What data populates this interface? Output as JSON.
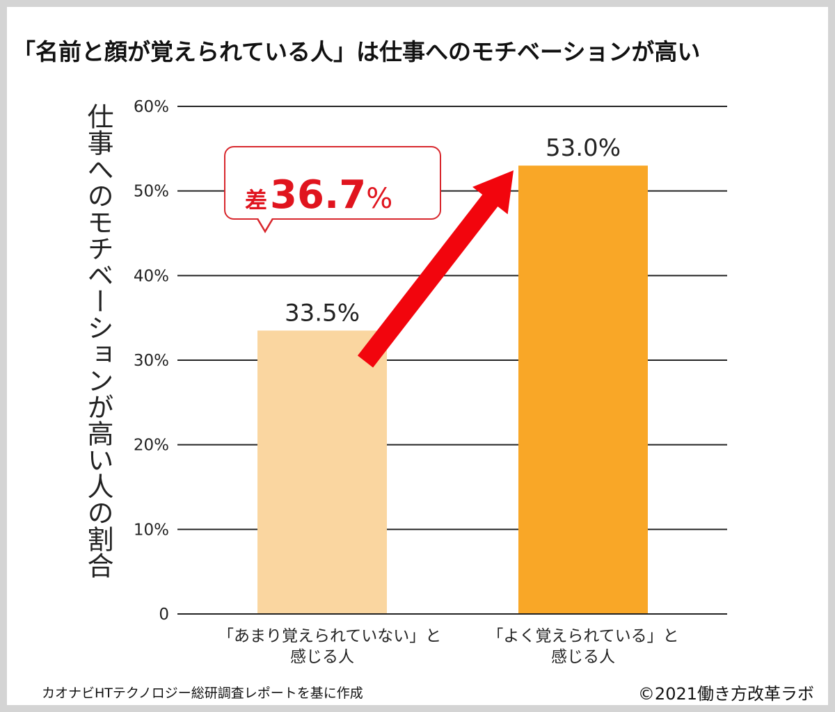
{
  "chart_data": {
    "type": "bar",
    "title": "「名前と顔が覚えられている人」は仕事へのモチベーションが高い",
    "ylabel": "仕事へのモチベーションが高い人の割合",
    "xlabel": "",
    "ylim": [
      0,
      60
    ],
    "yticks": [
      0,
      10,
      20,
      30,
      40,
      50,
      60
    ],
    "ytick_labels": [
      "0",
      "10%",
      "20%",
      "30%",
      "40%",
      "50%",
      "60%"
    ],
    "grid": true,
    "categories": [
      [
        "「あまり覚えられていない」と",
        "感じる人"
      ],
      [
        "「よく覚えられている」と",
        "感じる人"
      ]
    ],
    "values": [
      33.5,
      53.0
    ],
    "data_labels": [
      "33.5%",
      "53.0%"
    ],
    "colors": [
      "#fad6a0",
      "#f9a727"
    ],
    "annotation": {
      "prefix": "差",
      "value": "36.7",
      "unit": "%",
      "color": "#e0141e"
    }
  },
  "footer": {
    "source": "カオナビHTテクノロジー総研調査レポートを基に作成",
    "copyright": "©2021働き方改革ラボ"
  }
}
